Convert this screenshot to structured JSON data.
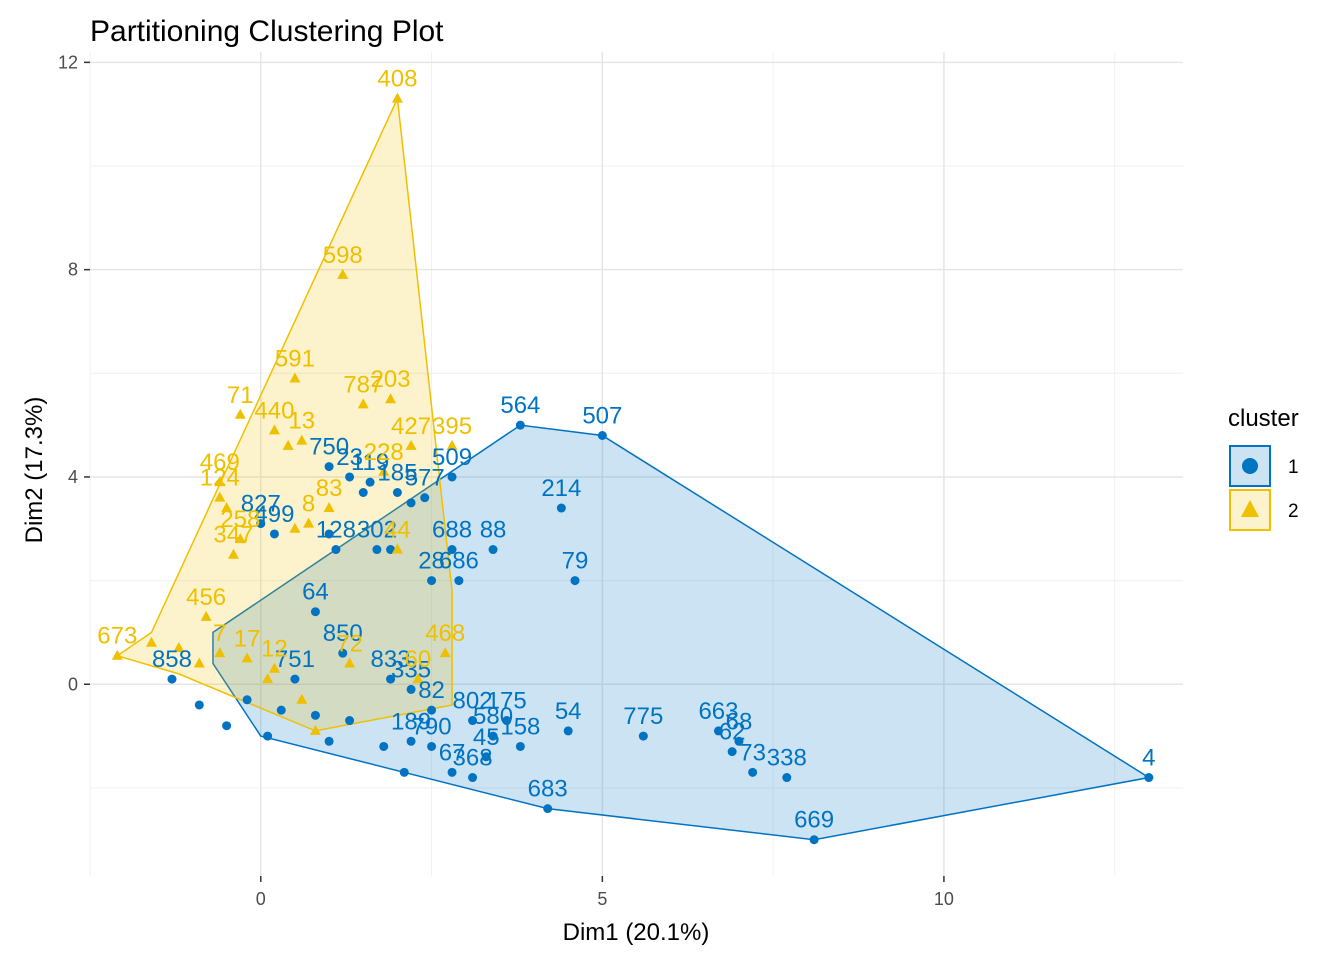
{
  "chart_data": {
    "type": "scatter",
    "title": "Partitioning Clustering Plot",
    "xlabel": "Dim1 (20.1%)",
    "ylabel": "Dim2 (17.3%)",
    "xlim": [
      -2.5,
      13.5
    ],
    "ylim": [
      -3.7,
      12.2
    ],
    "x_ticks": [
      0,
      5,
      10
    ],
    "y_ticks": [
      0,
      4,
      8,
      12
    ],
    "grid": true,
    "legend": {
      "title": "cluster",
      "position": "right",
      "entries": [
        "1",
        "2"
      ]
    },
    "colors": {
      "1": "#0073C2",
      "2": "#EFC000"
    },
    "hull_colors": {
      "1": "#0073C2",
      "2": "#EFC000"
    },
    "hulls": {
      "1": [
        [
          -0.7,
          1.0
        ],
        [
          3.8,
          5.0
        ],
        [
          5.0,
          4.8
        ],
        [
          13.0,
          -1.8
        ],
        [
          8.1,
          -3.0
        ],
        [
          4.2,
          -2.4
        ],
        [
          0.0,
          -1.0
        ],
        [
          -0.7,
          0.4
        ]
      ],
      "2": [
        [
          -2.1,
          0.55
        ],
        [
          -1.6,
          1.0
        ],
        [
          2.0,
          11.3
        ],
        [
          2.8,
          1.8
        ],
        [
          2.8,
          -0.4
        ],
        [
          0.8,
          -0.9
        ],
        [
          -1.2,
          0.2
        ]
      ]
    },
    "series": [
      {
        "name": "1",
        "points": [
          {
            "x": 3.8,
            "y": 5.0,
            "label": "564"
          },
          {
            "x": 5.0,
            "y": 4.8,
            "label": "507"
          },
          {
            "x": 4.4,
            "y": 3.4,
            "label": "214"
          },
          {
            "x": 4.6,
            "y": 2.0,
            "label": "79"
          },
          {
            "x": 2.8,
            "y": 4.0,
            "label": "509"
          },
          {
            "x": 2.8,
            "y": 2.6,
            "label": "688"
          },
          {
            "x": 3.4,
            "y": 2.6,
            "label": "88"
          },
          {
            "x": 2.5,
            "y": 2.0,
            "label": "28"
          },
          {
            "x": 2.9,
            "y": 2.0,
            "label": "686"
          },
          {
            "x": 1.0,
            "y": 4.2,
            "label": "750"
          },
          {
            "x": 1.3,
            "y": 4.0,
            "label": "23"
          },
          {
            "x": 1.6,
            "y": 3.9,
            "label": "119"
          },
          {
            "x": 2.0,
            "y": 3.7,
            "label": "185"
          },
          {
            "x": 2.4,
            "y": 3.6,
            "label": "577"
          },
          {
            "x": 0.0,
            "y": 3.1,
            "label": "827"
          },
          {
            "x": 0.2,
            "y": 2.9,
            "label": "499"
          },
          {
            "x": 1.1,
            "y": 2.6,
            "label": "128"
          },
          {
            "x": 1.7,
            "y": 2.6,
            "label": "302"
          },
          {
            "x": 0.8,
            "y": 1.4,
            "label": "64"
          },
          {
            "x": 1.2,
            "y": 0.6,
            "label": "850"
          },
          {
            "x": 1.9,
            "y": 0.1,
            "label": "833"
          },
          {
            "x": 2.2,
            "y": -0.1,
            "label": "335"
          },
          {
            "x": 2.5,
            "y": -0.5,
            "label": "82"
          },
          {
            "x": 3.1,
            "y": -0.7,
            "label": "802"
          },
          {
            "x": 3.6,
            "y": -0.7,
            "label": "175"
          },
          {
            "x": 3.4,
            "y": -1.0,
            "label": "580"
          },
          {
            "x": 4.5,
            "y": -0.9,
            "label": "54"
          },
          {
            "x": 3.8,
            "y": -1.2,
            "label": "158"
          },
          {
            "x": 3.3,
            "y": -1.4,
            "label": "45"
          },
          {
            "x": 2.5,
            "y": -1.2,
            "label": "790"
          },
          {
            "x": 2.2,
            "y": -1.1,
            "label": "189"
          },
          {
            "x": 3.1,
            "y": -1.8,
            "label": "368"
          },
          {
            "x": 2.8,
            "y": -1.7,
            "label": "67"
          },
          {
            "x": 5.6,
            "y": -1.0,
            "label": "775"
          },
          {
            "x": 6.7,
            "y": -0.9,
            "label": "663"
          },
          {
            "x": 7.0,
            "y": -1.1,
            "label": "68"
          },
          {
            "x": 6.9,
            "y": -1.3,
            "label": "62"
          },
          {
            "x": 7.2,
            "y": -1.7,
            "label": "73"
          },
          {
            "x": 7.7,
            "y": -1.8,
            "label": "338"
          },
          {
            "x": 13.0,
            "y": -1.8,
            "label": "4"
          },
          {
            "x": 4.2,
            "y": -2.4,
            "label": "683"
          },
          {
            "x": 8.1,
            "y": -3.0,
            "label": "669"
          },
          {
            "x": -1.3,
            "y": 0.1,
            "label": "858"
          },
          {
            "x": 0.5,
            "y": 0.1,
            "label": "751"
          },
          {
            "x": -0.2,
            "y": -0.3,
            "label": ""
          },
          {
            "x": 0.3,
            "y": -0.5,
            "label": ""
          },
          {
            "x": 0.8,
            "y": -0.6,
            "label": ""
          },
          {
            "x": 1.3,
            "y": -0.7,
            "label": ""
          },
          {
            "x": -0.9,
            "y": -0.4,
            "label": ""
          },
          {
            "x": -0.5,
            "y": -0.8,
            "label": ""
          },
          {
            "x": 0.1,
            "y": -1.0,
            "label": ""
          },
          {
            "x": 1.0,
            "y": -1.1,
            "label": ""
          },
          {
            "x": 1.8,
            "y": -1.2,
            "label": ""
          },
          {
            "x": 2.1,
            "y": -1.7,
            "label": ""
          },
          {
            "x": 1.5,
            "y": 3.7,
            "label": ""
          },
          {
            "x": 2.2,
            "y": 3.5,
            "label": ""
          },
          {
            "x": 1.9,
            "y": 2.6,
            "label": ""
          },
          {
            "x": 1.0,
            "y": 2.9,
            "label": ""
          }
        ]
      },
      {
        "name": "2",
        "points": [
          {
            "x": 2.0,
            "y": 11.3,
            "label": "408"
          },
          {
            "x": 1.2,
            "y": 7.9,
            "label": "598"
          },
          {
            "x": 0.5,
            "y": 5.9,
            "label": "591"
          },
          {
            "x": 1.5,
            "y": 5.4,
            "label": "787"
          },
          {
            "x": 1.9,
            "y": 5.5,
            "label": "203"
          },
          {
            "x": 2.2,
            "y": 4.6,
            "label": "427"
          },
          {
            "x": 2.8,
            "y": 4.6,
            "label": "395"
          },
          {
            "x": 1.8,
            "y": 4.1,
            "label": "228"
          },
          {
            "x": -0.6,
            "y": 3.9,
            "label": "469"
          },
          {
            "x": -0.6,
            "y": 3.6,
            "label": "124"
          },
          {
            "x": -0.3,
            "y": 2.8,
            "label": "258"
          },
          {
            "x": -0.4,
            "y": 2.5,
            "label": "347"
          },
          {
            "x": -0.8,
            "y": 1.3,
            "label": "456"
          },
          {
            "x": -2.1,
            "y": 0.55,
            "label": "673"
          },
          {
            "x": 2.7,
            "y": 0.6,
            "label": "468"
          },
          {
            "x": 2.3,
            "y": 0.1,
            "label": "60"
          },
          {
            "x": 2.0,
            "y": 2.6,
            "label": "44"
          },
          {
            "x": 1.0,
            "y": 3.4,
            "label": "83"
          },
          {
            "x": 0.7,
            "y": 3.1,
            "label": "8"
          },
          {
            "x": -0.3,
            "y": 5.2,
            "label": "71"
          },
          {
            "x": 0.2,
            "y": 4.9,
            "label": "440"
          },
          {
            "x": 0.6,
            "y": 4.7,
            "label": "13"
          },
          {
            "x": 1.3,
            "y": 0.4,
            "label": "72"
          },
          {
            "x": -0.6,
            "y": 0.6,
            "label": "7"
          },
          {
            "x": -0.2,
            "y": 0.5,
            "label": "17"
          },
          {
            "x": 0.2,
            "y": 0.3,
            "label": "12"
          },
          {
            "x": -1.6,
            "y": 0.8,
            "label": ""
          },
          {
            "x": -1.2,
            "y": 0.7,
            "label": ""
          },
          {
            "x": -0.9,
            "y": 0.4,
            "label": ""
          },
          {
            "x": 0.1,
            "y": 0.1,
            "label": ""
          },
          {
            "x": 0.6,
            "y": -0.3,
            "label": ""
          },
          {
            "x": 0.8,
            "y": -0.9,
            "label": ""
          },
          {
            "x": 0.4,
            "y": 4.6,
            "label": ""
          },
          {
            "x": 0.5,
            "y": 3.0,
            "label": ""
          },
          {
            "x": -0.5,
            "y": 3.4,
            "label": ""
          }
        ]
      }
    ]
  }
}
